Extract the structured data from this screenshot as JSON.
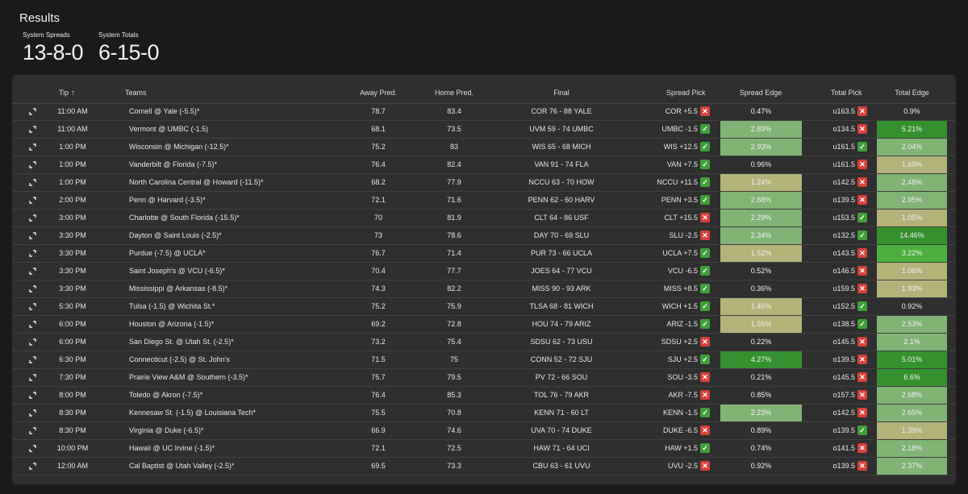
{
  "page": {
    "title": "Results"
  },
  "stats": [
    {
      "label": "System Spreads",
      "value": "13-8-0"
    },
    {
      "label": "System Totals",
      "value": "6-15-0"
    }
  ],
  "colors": {
    "tier1": "#35912f",
    "tier2": "#4fae40",
    "tier3": "#7fb474",
    "tier4": "#b3b379",
    "win": "#3f9f3a",
    "loss": "#d6403a"
  },
  "table": {
    "headers": {
      "tip": "Tip",
      "teams": "Teams",
      "away_pred": "Away Pred.",
      "home_pred": "Home Pred.",
      "final": "Final",
      "spread_pick": "Spread Pick",
      "spread_edge": "Spread Edge",
      "total_pick": "Total Pick",
      "total_edge": "Total Edge"
    },
    "sort_icon": "arrow-up-icon",
    "rows": [
      {
        "tip": "11:00 AM",
        "teams": "Cornell @ Yale (-5.5)*",
        "away": "78.7",
        "home": "83.4",
        "final": "COR 76 - 88 YALE",
        "spread_pick": "COR +5.5",
        "spread_result": "loss",
        "spread_edge": "0.47%",
        "spread_tier": "none",
        "total_pick": "u163.5",
        "total_result": "loss",
        "total_edge": "0.9%",
        "total_tier": "none"
      },
      {
        "tip": "11:00 AM",
        "teams": "Vermont @ UMBC (-1.5)",
        "away": "68.1",
        "home": "73.5",
        "final": "UVM 59 - 74 UMBC",
        "spread_pick": "UMBC -1.5",
        "spread_result": "win",
        "spread_edge": "2.89%",
        "spread_tier": "tier3",
        "total_pick": "o134.5",
        "total_result": "loss",
        "total_edge": "5.21%",
        "total_tier": "tier1"
      },
      {
        "tip": "1:00 PM",
        "teams": "Wisconsin @ Michigan (-12.5)*",
        "away": "75.2",
        "home": "83",
        "final": "WIS 65 - 68 MICH",
        "spread_pick": "WIS +12.5",
        "spread_result": "win",
        "spread_edge": "2.93%",
        "spread_tier": "tier3",
        "total_pick": "u161.5",
        "total_result": "win",
        "total_edge": "2.04%",
        "total_tier": "tier3"
      },
      {
        "tip": "1:00 PM",
        "teams": "Vanderbilt @ Florida (-7.5)*",
        "away": "76.4",
        "home": "82.4",
        "final": "VAN 91 - 74 FLA",
        "spread_pick": "VAN +7.5",
        "spread_result": "win",
        "spread_edge": "0.96%",
        "spread_tier": "none",
        "total_pick": "u161.5",
        "total_result": "loss",
        "total_edge": "1.69%",
        "total_tier": "tier4"
      },
      {
        "tip": "1:00 PM",
        "teams": "North Carolina Central @ Howard (-11.5)*",
        "away": "68.2",
        "home": "77.9",
        "final": "NCCU 63 - 70 HOW",
        "spread_pick": "NCCU +11.5",
        "spread_result": "win",
        "spread_edge": "1.24%",
        "spread_tier": "tier4",
        "total_pick": "o142.5",
        "total_result": "loss",
        "total_edge": "2.48%",
        "total_tier": "tier3"
      },
      {
        "tip": "2:00 PM",
        "teams": "Penn @ Harvard (-3.5)*",
        "away": "72.1",
        "home": "71.6",
        "final": "PENN 62 - 60 HARV",
        "spread_pick": "PENN +3.5",
        "spread_result": "win",
        "spread_edge": "2.88%",
        "spread_tier": "tier3",
        "total_pick": "o139.5",
        "total_result": "loss",
        "total_edge": "2.95%",
        "total_tier": "tier3"
      },
      {
        "tip": "3:00 PM",
        "teams": "Charlotte @ South Florida (-15.5)*",
        "away": "70",
        "home": "81.9",
        "final": "CLT 64 - 86 USF",
        "spread_pick": "CLT +15.5",
        "spread_result": "loss",
        "spread_edge": "2.29%",
        "spread_tier": "tier3",
        "total_pick": "u153.5",
        "total_result": "win",
        "total_edge": "1.05%",
        "total_tier": "tier4"
      },
      {
        "tip": "3:30 PM",
        "teams": "Dayton @ Saint Louis (-2.5)*",
        "away": "73",
        "home": "78.6",
        "final": "DAY 70 - 69 SLU",
        "spread_pick": "SLU -2.5",
        "spread_result": "loss",
        "spread_edge": "2.34%",
        "spread_tier": "tier3",
        "total_pick": "o132.5",
        "total_result": "win",
        "total_edge": "14.46%",
        "total_tier": "tier1"
      },
      {
        "tip": "3:30 PM",
        "teams": "Purdue (-7.5) @ UCLA*",
        "away": "76.7",
        "home": "71.4",
        "final": "PUR 73 - 66 UCLA",
        "spread_pick": "UCLA +7.5",
        "spread_result": "win",
        "spread_edge": "1.52%",
        "spread_tier": "tier4",
        "total_pick": "o143.5",
        "total_result": "loss",
        "total_edge": "3.22%",
        "total_tier": "tier2"
      },
      {
        "tip": "3:30 PM",
        "teams": "Saint Joseph's @ VCU (-6.5)*",
        "away": "70.4",
        "home": "77.7",
        "final": "JOES 64 - 77 VCU",
        "spread_pick": "VCU -6.5",
        "spread_result": "win",
        "spread_edge": "0.52%",
        "spread_tier": "none",
        "total_pick": "o146.5",
        "total_result": "loss",
        "total_edge": "1.06%",
        "total_tier": "tier4"
      },
      {
        "tip": "3:30 PM",
        "teams": "Mississippi @ Arkansas (-8.5)*",
        "away": "74.3",
        "home": "82.2",
        "final": "MISS 90 - 93 ARK",
        "spread_pick": "MISS +8.5",
        "spread_result": "win",
        "spread_edge": "0.36%",
        "spread_tier": "none",
        "total_pick": "u159.5",
        "total_result": "loss",
        "total_edge": "1.93%",
        "total_tier": "tier4"
      },
      {
        "tip": "5:30 PM",
        "teams": "Tulsa (-1.5) @ Wichita St.*",
        "away": "75.2",
        "home": "75.9",
        "final": "TLSA 68 - 81 WICH",
        "spread_pick": "WICH +1.5",
        "spread_result": "win",
        "spread_edge": "1.46%",
        "spread_tier": "tier4",
        "total_pick": "u152.5",
        "total_result": "win",
        "total_edge": "0.92%",
        "total_tier": "none"
      },
      {
        "tip": "6:00 PM",
        "teams": "Houston @ Arizona (-1.5)*",
        "away": "69.2",
        "home": "72.8",
        "final": "HOU 74 - 79 ARIZ",
        "spread_pick": "ARIZ -1.5",
        "spread_result": "win",
        "spread_edge": "1.55%",
        "spread_tier": "tier4",
        "total_pick": "o138.5",
        "total_result": "win",
        "total_edge": "2.53%",
        "total_tier": "tier3"
      },
      {
        "tip": "6:00 PM",
        "teams": "San Diego St. @ Utah St. (-2.5)*",
        "away": "73.2",
        "home": "75.4",
        "final": "SDSU 62 - 73 USU",
        "spread_pick": "SDSU +2.5",
        "spread_result": "loss",
        "spread_edge": "0.22%",
        "spread_tier": "none",
        "total_pick": "o145.5",
        "total_result": "loss",
        "total_edge": "2.1%",
        "total_tier": "tier3"
      },
      {
        "tip": "6:30 PM",
        "teams": "Connecticut (-2.5) @ St. John's",
        "away": "71.5",
        "home": "75",
        "final": "CONN 52 - 72 SJU",
        "spread_pick": "SJU +2.5",
        "spread_result": "win",
        "spread_edge": "4.27%",
        "spread_tier": "tier1",
        "total_pick": "o139.5",
        "total_result": "loss",
        "total_edge": "5.01%",
        "total_tier": "tier1"
      },
      {
        "tip": "7:30 PM",
        "teams": "Prairie View A&M @ Southern (-3.5)*",
        "away": "75.7",
        "home": "79.5",
        "final": "PV 72 - 66 SOU",
        "spread_pick": "SOU -3.5",
        "spread_result": "loss",
        "spread_edge": "0.21%",
        "spread_tier": "none",
        "total_pick": "o145.5",
        "total_result": "loss",
        "total_edge": "6.6%",
        "total_tier": "tier1"
      },
      {
        "tip": "8:00 PM",
        "teams": "Toledo @ Akron (-7.5)*",
        "away": "76.4",
        "home": "85.3",
        "final": "TOL 76 - 79 AKR",
        "spread_pick": "AKR -7.5",
        "spread_result": "loss",
        "spread_edge": "0.85%",
        "spread_tier": "none",
        "total_pick": "o157.5",
        "total_result": "loss",
        "total_edge": "2.68%",
        "total_tier": "tier3"
      },
      {
        "tip": "8:30 PM",
        "teams": "Kennesaw St. (-1.5) @ Louisiana Tech*",
        "away": "75.5",
        "home": "70.8",
        "final": "KENN 71 - 60 LT",
        "spread_pick": "KENN -1.5",
        "spread_result": "win",
        "spread_edge": "2.23%",
        "spread_tier": "tier3",
        "total_pick": "o142.5",
        "total_result": "loss",
        "total_edge": "2.65%",
        "total_tier": "tier3"
      },
      {
        "tip": "8:30 PM",
        "teams": "Virginia @ Duke (-6.5)*",
        "away": "66.9",
        "home": "74.6",
        "final": "UVA 70 - 74 DUKE",
        "spread_pick": "DUKE -6.5",
        "spread_result": "loss",
        "spread_edge": "0.89%",
        "spread_tier": "none",
        "total_pick": "o139.5",
        "total_result": "win",
        "total_edge": "1.39%",
        "total_tier": "tier4"
      },
      {
        "tip": "10:00 PM",
        "teams": "Hawaii @ UC Irvine (-1.5)*",
        "away": "72.1",
        "home": "72.5",
        "final": "HAW 71 - 64 UCI",
        "spread_pick": "HAW +1.5",
        "spread_result": "win",
        "spread_edge": "0.74%",
        "spread_tier": "none",
        "total_pick": "o141.5",
        "total_result": "loss",
        "total_edge": "2.18%",
        "total_tier": "tier3"
      },
      {
        "tip": "12:00 AM",
        "teams": "Cal Baptist @ Utah Valley (-2.5)*",
        "away": "69.5",
        "home": "73.3",
        "final": "CBU 63 - 61 UVU",
        "spread_pick": "UVU -2.5",
        "spread_result": "loss",
        "spread_edge": "0.92%",
        "spread_tier": "none",
        "total_pick": "o139.5",
        "total_result": "loss",
        "total_edge": "2.37%",
        "total_tier": "tier3"
      }
    ]
  }
}
